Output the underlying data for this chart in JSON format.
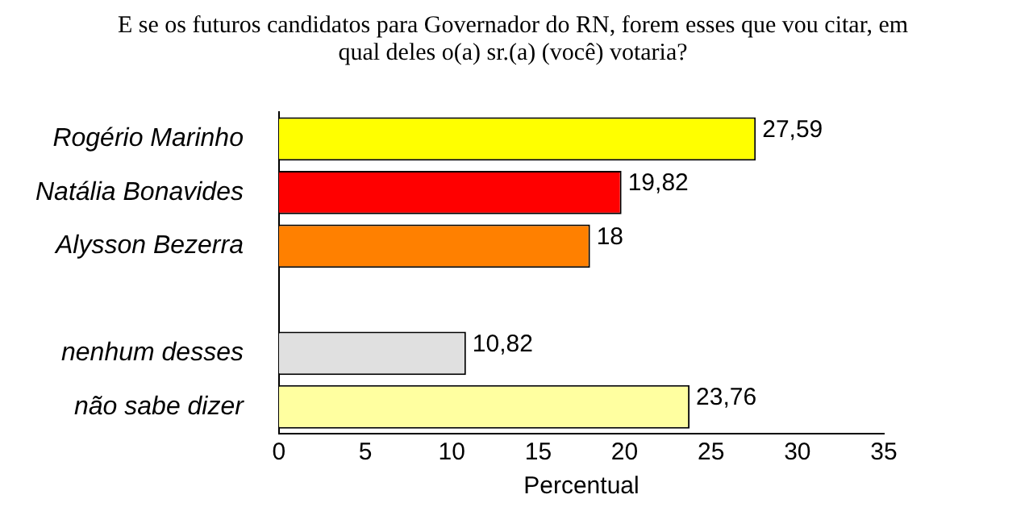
{
  "chart_data": {
    "type": "bar",
    "orientation": "horizontal",
    "title": "E se os futuros candidatos para Governador do RN, forem esses que vou citar, em qual deles o(a) sr.(a) (você) votaria?",
    "categories": [
      "Rogério Marinho",
      "Natália Bonavides",
      "Alysson Bezerra",
      null,
      "nenhum desses",
      "não sabe dizer"
    ],
    "values": [
      27.59,
      19.82,
      18,
      null,
      10.82,
      23.76
    ],
    "colors": [
      "#ffff00",
      "#ff0000",
      "#ff8000",
      "#ffffff",
      "#e0e0e0",
      "#ffffa0"
    ],
    "value_labels": [
      "27,59",
      "19,82",
      "18",
      null,
      "10,82",
      "23,76"
    ],
    "xlabel": "Percentual",
    "xlim": [
      0,
      35
    ],
    "xticks": [
      0,
      5,
      10,
      15,
      20,
      25,
      30,
      35
    ],
    "grid": false,
    "legend": false
  }
}
